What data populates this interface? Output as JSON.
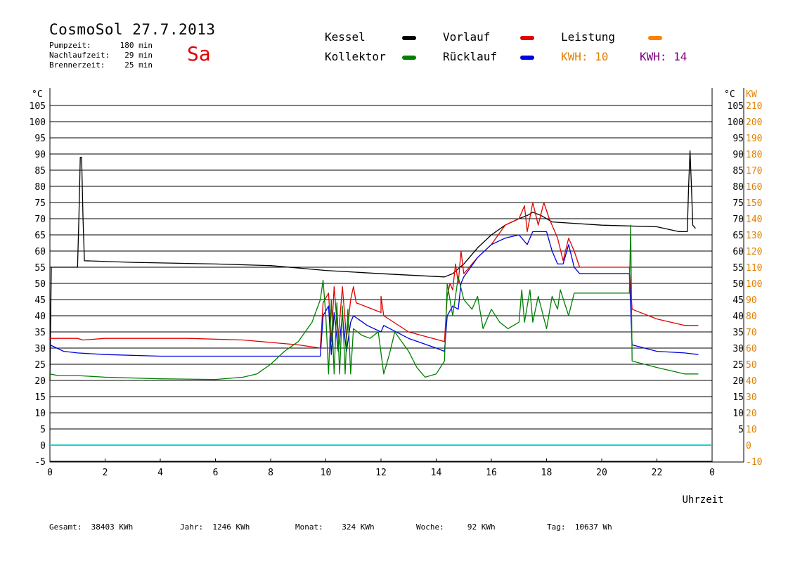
{
  "header": {
    "title": "CosmoSol 27.7.2013",
    "day": "Sa",
    "info": [
      {
        "label": "Pumpzeit:",
        "value": "180 min"
      },
      {
        "label": "Nachlaufzeit:",
        "value": "29 min"
      },
      {
        "label": "Brennerzeit:",
        "value": "25 min"
      }
    ]
  },
  "legend": [
    {
      "name": "Kessel",
      "color": "#000000"
    },
    {
      "name": "Vorlauf",
      "color": "#e00000"
    },
    {
      "name": "Leistung",
      "color": "#ff8000"
    },
    {
      "name": "Kollektor",
      "color": "#008000"
    },
    {
      "name": "Rücklauf",
      "color": "#0000e0"
    }
  ],
  "kwh": [
    {
      "label": "KWH:",
      "value": "10",
      "color": "#e08000"
    },
    {
      "label": "KWH:",
      "value": "14",
      "color": "#800080"
    }
  ],
  "footer": [
    {
      "label": "Gesamt:",
      "value": "38403 KWh"
    },
    {
      "label": "Jahr:",
      "value": "1246 KWh"
    },
    {
      "label": "Monat:",
      "value": "324 KWh"
    },
    {
      "label": "Woche:",
      "value": "92 KWh"
    },
    {
      "label": "Tag:",
      "value": "10637 Wh"
    }
  ],
  "chart_data": {
    "type": "line",
    "xlabel": "Uhrzeit",
    "ylabel_left": "°C",
    "ylabel_right_temp": "°C",
    "ylabel_right_power": "KW",
    "xlim": [
      0,
      24
    ],
    "ylim": [
      -5,
      110
    ],
    "x_ticks": [
      "0",
      "2",
      "4",
      "6",
      "8",
      "10",
      "12",
      "14",
      "16",
      "18",
      "20",
      "22",
      "0"
    ],
    "y_ticks_left": [
      "-5",
      "0",
      "5",
      "10",
      "15",
      "20",
      "25",
      "30",
      "35",
      "40",
      "45",
      "50",
      "55",
      "60",
      "65",
      "70",
      "75",
      "80",
      "85",
      "90",
      "95",
      "100",
      "105"
    ],
    "y_ticks_right_temp": [
      "5",
      "10",
      "15",
      "20",
      "25",
      "30",
      "35",
      "40",
      "45",
      "50",
      "55",
      "60",
      "65",
      "70",
      "75",
      "80",
      "85",
      "90",
      "95",
      "100",
      "105"
    ],
    "y_ticks_right_power": [
      "-10",
      "0",
      "10",
      "20",
      "30",
      "40",
      "50",
      "60",
      "70",
      "80",
      "90",
      "100",
      "110",
      "120",
      "130",
      "140",
      "150",
      "160",
      "170",
      "180",
      "190",
      "200",
      "210"
    ],
    "grid": true,
    "series": [
      {
        "name": "Kessel",
        "color": "#000000",
        "points": [
          [
            0,
            20
          ],
          [
            0.05,
            55
          ],
          [
            1,
            55
          ],
          [
            1.05,
            70
          ],
          [
            1.1,
            89
          ],
          [
            1.15,
            89
          ],
          [
            1.2,
            70
          ],
          [
            1.25,
            57
          ],
          [
            3,
            56.5
          ],
          [
            6,
            56
          ],
          [
            8,
            55.5
          ],
          [
            10,
            54
          ],
          [
            12,
            53
          ],
          [
            14.3,
            52
          ],
          [
            14.6,
            53
          ],
          [
            15,
            56
          ],
          [
            15.5,
            61
          ],
          [
            16,
            65
          ],
          [
            16.5,
            68
          ],
          [
            17,
            70
          ],
          [
            17.3,
            71
          ],
          [
            17.5,
            72
          ],
          [
            17.8,
            71
          ],
          [
            18.2,
            69
          ],
          [
            20,
            68
          ],
          [
            22,
            67.5
          ],
          [
            22.8,
            66
          ],
          [
            23.1,
            66
          ],
          [
            23.15,
            80
          ],
          [
            23.2,
            91
          ],
          [
            23.25,
            80
          ],
          [
            23.3,
            68
          ],
          [
            23.4,
            67
          ]
        ]
      },
      {
        "name": "Vorlauf",
        "color": "#e00000",
        "points": [
          [
            0,
            33
          ],
          [
            1,
            33
          ],
          [
            1.2,
            32.5
          ],
          [
            2,
            33
          ],
          [
            5,
            33
          ],
          [
            7,
            32.5
          ],
          [
            9,
            31
          ],
          [
            9.8,
            30
          ],
          [
            9.9,
            44
          ],
          [
            10.1,
            47
          ],
          [
            10.2,
            32
          ],
          [
            10.3,
            49
          ],
          [
            10.45,
            33
          ],
          [
            10.6,
            49
          ],
          [
            10.75,
            33
          ],
          [
            10.9,
            45
          ],
          [
            11,
            49
          ],
          [
            11.1,
            44
          ],
          [
            12,
            41
          ],
          [
            12,
            46
          ],
          [
            12.1,
            40
          ],
          [
            13,
            35
          ],
          [
            14.3,
            32
          ],
          [
            14.4,
            46
          ],
          [
            14.5,
            50
          ],
          [
            14.6,
            48
          ],
          [
            14.7,
            56
          ],
          [
            14.8,
            50
          ],
          [
            14.9,
            60
          ],
          [
            15,
            53
          ],
          [
            15.5,
            58
          ],
          [
            16,
            62
          ],
          [
            16.5,
            68
          ],
          [
            17,
            70
          ],
          [
            17.2,
            74
          ],
          [
            17.3,
            66
          ],
          [
            17.5,
            75
          ],
          [
            17.7,
            68
          ],
          [
            17.9,
            75
          ],
          [
            18.1,
            70
          ],
          [
            18.4,
            64
          ],
          [
            18.6,
            57
          ],
          [
            18.8,
            64
          ],
          [
            19,
            60
          ],
          [
            19.2,
            55
          ],
          [
            21,
            55
          ],
          [
            21.1,
            42
          ],
          [
            22,
            39
          ],
          [
            23,
            37
          ],
          [
            23.5,
            37
          ]
        ]
      },
      {
        "name": "Rücklauf",
        "color": "#0000e0",
        "points": [
          [
            0,
            31
          ],
          [
            0.5,
            29
          ],
          [
            1,
            28.5
          ],
          [
            2,
            28
          ],
          [
            4,
            27.5
          ],
          [
            8,
            27.5
          ],
          [
            9.8,
            27.5
          ],
          [
            9.9,
            40
          ],
          [
            10.1,
            43
          ],
          [
            10.2,
            28
          ],
          [
            10.3,
            41
          ],
          [
            10.45,
            29
          ],
          [
            10.6,
            40
          ],
          [
            10.75,
            29
          ],
          [
            10.9,
            38
          ],
          [
            11,
            40
          ],
          [
            11.5,
            37
          ],
          [
            12,
            35
          ],
          [
            12.1,
            37
          ],
          [
            13,
            33
          ],
          [
            14,
            30
          ],
          [
            14.3,
            29
          ],
          [
            14.4,
            40
          ],
          [
            14.6,
            43
          ],
          [
            14.8,
            42
          ],
          [
            14.9,
            50
          ],
          [
            15,
            52
          ],
          [
            15.5,
            58
          ],
          [
            16,
            62
          ],
          [
            16.5,
            64
          ],
          [
            17,
            65
          ],
          [
            17.3,
            62
          ],
          [
            17.5,
            66
          ],
          [
            18,
            66
          ],
          [
            18.2,
            60
          ],
          [
            18.4,
            56
          ],
          [
            18.6,
            56
          ],
          [
            18.8,
            62
          ],
          [
            19,
            55
          ],
          [
            19.2,
            53
          ],
          [
            21,
            53
          ],
          [
            21.1,
            31
          ],
          [
            22,
            29
          ],
          [
            23,
            28.5
          ],
          [
            23.5,
            28
          ]
        ]
      },
      {
        "name": "Kollektor",
        "color": "#008000",
        "points": [
          [
            0,
            22
          ],
          [
            0.3,
            21.5
          ],
          [
            1,
            21.5
          ],
          [
            2,
            21
          ],
          [
            4,
            20.5
          ],
          [
            6,
            20.3
          ],
          [
            7,
            21
          ],
          [
            7.5,
            22
          ],
          [
            8,
            25
          ],
          [
            8.5,
            29
          ],
          [
            9,
            32
          ],
          [
            9.5,
            38
          ],
          [
            9.8,
            45
          ],
          [
            9.9,
            51
          ],
          [
            10,
            40
          ],
          [
            10.1,
            22
          ],
          [
            10.2,
            45
          ],
          [
            10.3,
            22
          ],
          [
            10.4,
            44
          ],
          [
            10.5,
            22
          ],
          [
            10.6,
            43
          ],
          [
            10.7,
            22
          ],
          [
            10.8,
            42
          ],
          [
            10.9,
            22
          ],
          [
            11,
            36
          ],
          [
            11.3,
            34
          ],
          [
            11.6,
            33
          ],
          [
            11.9,
            35
          ],
          [
            12.1,
            22
          ],
          [
            12.3,
            28
          ],
          [
            12.5,
            35
          ],
          [
            13,
            29
          ],
          [
            13.3,
            24
          ],
          [
            13.6,
            21
          ],
          [
            14,
            22
          ],
          [
            14.3,
            26
          ],
          [
            14.4,
            50
          ],
          [
            14.6,
            40
          ],
          [
            14.8,
            52
          ],
          [
            15,
            45
          ],
          [
            15.3,
            42
          ],
          [
            15.5,
            46
          ],
          [
            15.7,
            36
          ],
          [
            16,
            42
          ],
          [
            16.3,
            38
          ],
          [
            16.6,
            36
          ],
          [
            17,
            38
          ],
          [
            17.1,
            48
          ],
          [
            17.2,
            38
          ],
          [
            17.4,
            48
          ],
          [
            17.5,
            38
          ],
          [
            17.7,
            46
          ],
          [
            18,
            36
          ],
          [
            18.2,
            46
          ],
          [
            18.4,
            42
          ],
          [
            18.5,
            48
          ],
          [
            18.8,
            40
          ],
          [
            19,
            47
          ],
          [
            21,
            47
          ],
          [
            21.05,
            68
          ],
          [
            21.1,
            26
          ],
          [
            22,
            24
          ],
          [
            23,
            22
          ],
          [
            23.5,
            22
          ]
        ]
      }
    ]
  }
}
